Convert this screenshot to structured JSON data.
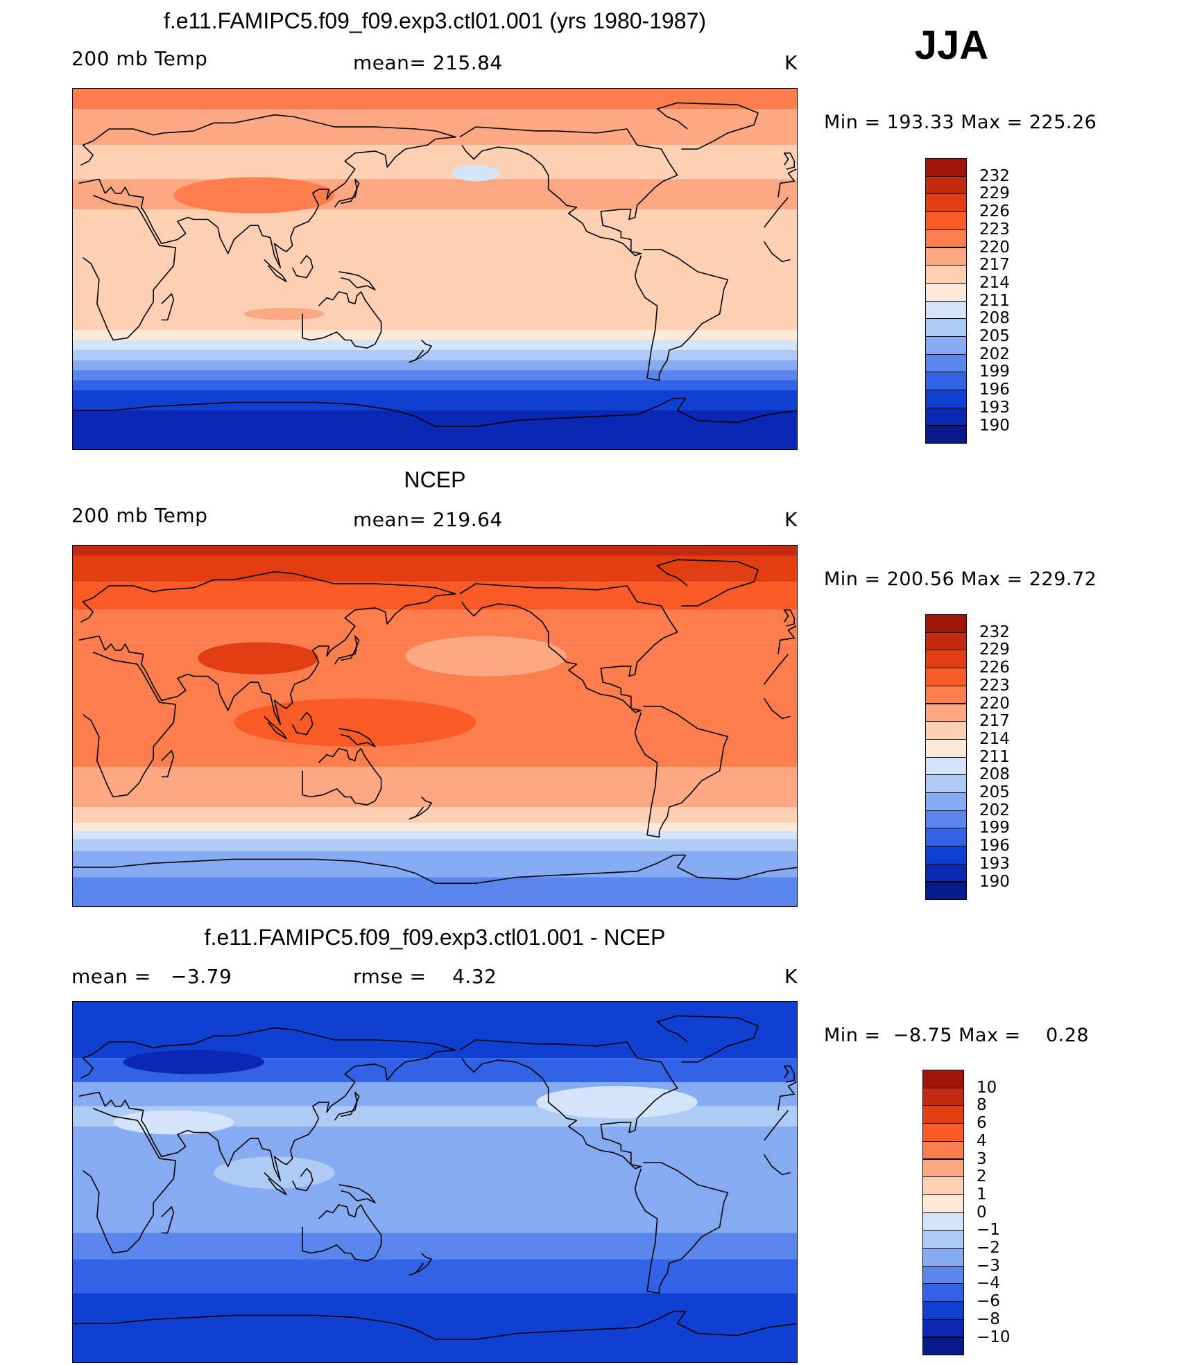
{
  "season": "JJA",
  "panels": [
    {
      "title": "f.e11.FAMIPC5.f09_f09.exp3.ctl01.001 (yrs 1980-1987)",
      "left_label": "200 mb Temp",
      "center_label": "mean= 215.84",
      "right_label": "K",
      "minmax": "Min = 193.33 Max = 225.26",
      "colorbar": [
        "232",
        "229",
        "226",
        "223",
        "220",
        "217",
        "214",
        "211",
        "208",
        "205",
        "202",
        "199",
        "196",
        "193",
        "190"
      ],
      "colors": [
        "#a0140a",
        "#c42a10",
        "#e23e12",
        "#fa5a26",
        "#fc7e4e",
        "#fda882",
        "#fdcfb3",
        "#fee8d8",
        "#d4e4fa",
        "#aecbf5",
        "#86abf2",
        "#5a86ec",
        "#3263e6",
        "#1040d2",
        "#0a28b4",
        "#061a8a"
      ],
      "bands": [
        {
          "lat_from": 90,
          "lat_to": 80,
          "level": 4
        },
        {
          "lat_from": 80,
          "lat_to": 62,
          "level": 5
        },
        {
          "lat_from": 62,
          "lat_to": 45,
          "level": 6
        },
        {
          "lat_from": 45,
          "lat_to": 30,
          "level": 5
        },
        {
          "lat_from": 30,
          "lat_to": -30,
          "level": 6
        },
        {
          "lat_from": -30,
          "lat_to": -35,
          "level": 7
        },
        {
          "lat_from": -35,
          "lat_to": -40,
          "level": 8
        },
        {
          "lat_from": -40,
          "lat_to": -45,
          "level": 9
        },
        {
          "lat_from": -45,
          "lat_to": -50,
          "level": 10
        },
        {
          "lat_from": -50,
          "lat_to": -55,
          "level": 11
        },
        {
          "lat_from": -55,
          "lat_to": -60,
          "level": 12
        },
        {
          "lat_from": -60,
          "lat_to": -70,
          "level": 13
        },
        {
          "lat_from": -70,
          "lat_to": -90,
          "level": 14
        }
      ],
      "blobs": [
        {
          "lon": 90,
          "lat": 37,
          "rx": 40,
          "ry": 9,
          "level": 4
        },
        {
          "lon": 200,
          "lat": 48,
          "rx": 12,
          "ry": 4,
          "level": 8
        },
        {
          "lon": 105,
          "lat": -22,
          "rx": 20,
          "ry": 3,
          "level": 5
        }
      ]
    },
    {
      "title": "NCEP",
      "left_label": "200 mb Temp",
      "center_label": "mean= 219.64",
      "right_label": "K",
      "minmax": "Min = 200.56 Max = 229.72",
      "colorbar": [
        "232",
        "229",
        "226",
        "223",
        "220",
        "217",
        "214",
        "211",
        "208",
        "205",
        "202",
        "199",
        "196",
        "193",
        "190"
      ],
      "colors": [
        "#a0140a",
        "#c42a10",
        "#e23e12",
        "#fa5a26",
        "#fc7e4e",
        "#fda882",
        "#fdcfb3",
        "#fee8d8",
        "#d4e4fa",
        "#aecbf5",
        "#86abf2",
        "#5a86ec",
        "#3263e6",
        "#1040d2",
        "#0a28b4",
        "#061a8a"
      ],
      "bands": [
        {
          "lat_from": 90,
          "lat_to": 85,
          "level": 1
        },
        {
          "lat_from": 85,
          "lat_to": 72,
          "level": 2
        },
        {
          "lat_from": 72,
          "lat_to": 58,
          "level": 3
        },
        {
          "lat_from": 58,
          "lat_to": 42,
          "level": 4
        },
        {
          "lat_from": 42,
          "lat_to": -20,
          "level": 4
        },
        {
          "lat_from": -20,
          "lat_to": -40,
          "level": 5
        },
        {
          "lat_from": -40,
          "lat_to": -48,
          "level": 6
        },
        {
          "lat_from": -48,
          "lat_to": -52,
          "level": 7
        },
        {
          "lat_from": -52,
          "lat_to": -56,
          "level": 8
        },
        {
          "lat_from": -56,
          "lat_to": -62,
          "level": 9
        },
        {
          "lat_from": -62,
          "lat_to": -75,
          "level": 10
        },
        {
          "lat_from": -75,
          "lat_to": -90,
          "level": 11
        }
      ],
      "blobs": [
        {
          "lon": 92,
          "lat": 34,
          "rx": 30,
          "ry": 8,
          "level": 2
        },
        {
          "lon": 205,
          "lat": 35,
          "rx": 40,
          "ry": 10,
          "level": 5
        },
        {
          "lon": 140,
          "lat": 2,
          "rx": 60,
          "ry": 12,
          "level": 3
        }
      ]
    },
    {
      "title": "f.e11.FAMIPC5.f09_f09.exp3.ctl01.001 - NCEP",
      "left_label": "mean =   −3.79",
      "center_label": "rmse =    4.32",
      "right_label": "K",
      "minmax": "Min =  −8.75 Max =    0.28",
      "colorbar": [
        "10",
        "8",
        "6",
        "4",
        "3",
        "2",
        "1",
        "0",
        "−1",
        "−2",
        "−3",
        "−4",
        "−6",
        "−8",
        "−10"
      ],
      "colors": [
        "#a0140a",
        "#c42a10",
        "#e23e12",
        "#fa5a26",
        "#fc7e4e",
        "#fda882",
        "#fdcfb3",
        "#fee8d8",
        "#d4e4fa",
        "#aecbf5",
        "#86abf2",
        "#5a86ec",
        "#3263e6",
        "#1040d2",
        "#0a28b4",
        "#061a8a"
      ],
      "bands": [
        {
          "lat_from": 90,
          "lat_to": 62,
          "level": 13
        },
        {
          "lat_from": 62,
          "lat_to": 50,
          "level": 12
        },
        {
          "lat_from": 50,
          "lat_to": 38,
          "level": 10
        },
        {
          "lat_from": 38,
          "lat_to": 28,
          "level": 9
        },
        {
          "lat_from": 28,
          "lat_to": -25,
          "level": 10
        },
        {
          "lat_from": -25,
          "lat_to": -38,
          "level": 11
        },
        {
          "lat_from": -38,
          "lat_to": -55,
          "level": 12
        },
        {
          "lat_from": -55,
          "lat_to": -90,
          "level": 13
        }
      ],
      "blobs": [
        {
          "lon": 270,
          "lat": 40,
          "rx": 40,
          "ry": 8,
          "level": 8
        },
        {
          "lon": 50,
          "lat": 30,
          "rx": 30,
          "ry": 6,
          "level": 8
        },
        {
          "lon": 100,
          "lat": 5,
          "rx": 30,
          "ry": 8,
          "level": 9
        },
        {
          "lon": 60,
          "lat": 60,
          "rx": 35,
          "ry": 6,
          "level": 14
        }
      ]
    }
  ]
}
